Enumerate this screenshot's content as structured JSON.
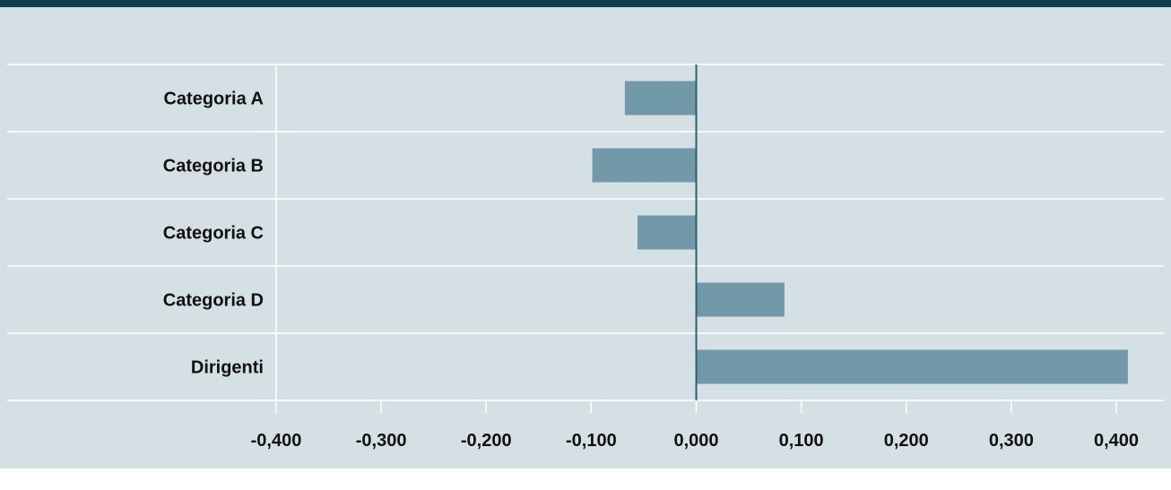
{
  "colors": {
    "background": "#d5e0e5",
    "header_bar": "#0b3e4c",
    "bar": "#7299a7",
    "gridline": "#ffffff",
    "zero_line": "#2f5f6e",
    "text": "#111111"
  },
  "chart_data": {
    "type": "bar",
    "orientation": "horizontal",
    "title": "",
    "xlabel": "",
    "ylabel": "",
    "categories": [
      "Categoria A",
      "Categoria B",
      "Categoria C",
      "Categoria D",
      "Dirigenti"
    ],
    "values": [
      -0.068,
      -0.099,
      -0.056,
      0.084,
      0.411
    ],
    "xlim": [
      -0.4,
      0.4
    ],
    "ticks": [
      -0.4,
      -0.3,
      -0.2,
      -0.1,
      0.0,
      0.1,
      0.2,
      0.3,
      0.4
    ],
    "tick_labels": [
      "-0,400",
      "-0,300",
      "-0,200",
      "-0,100",
      "0,000",
      "0,100",
      "0,200",
      "0,300",
      "0,400"
    ],
    "grid": true,
    "legend": "none"
  }
}
